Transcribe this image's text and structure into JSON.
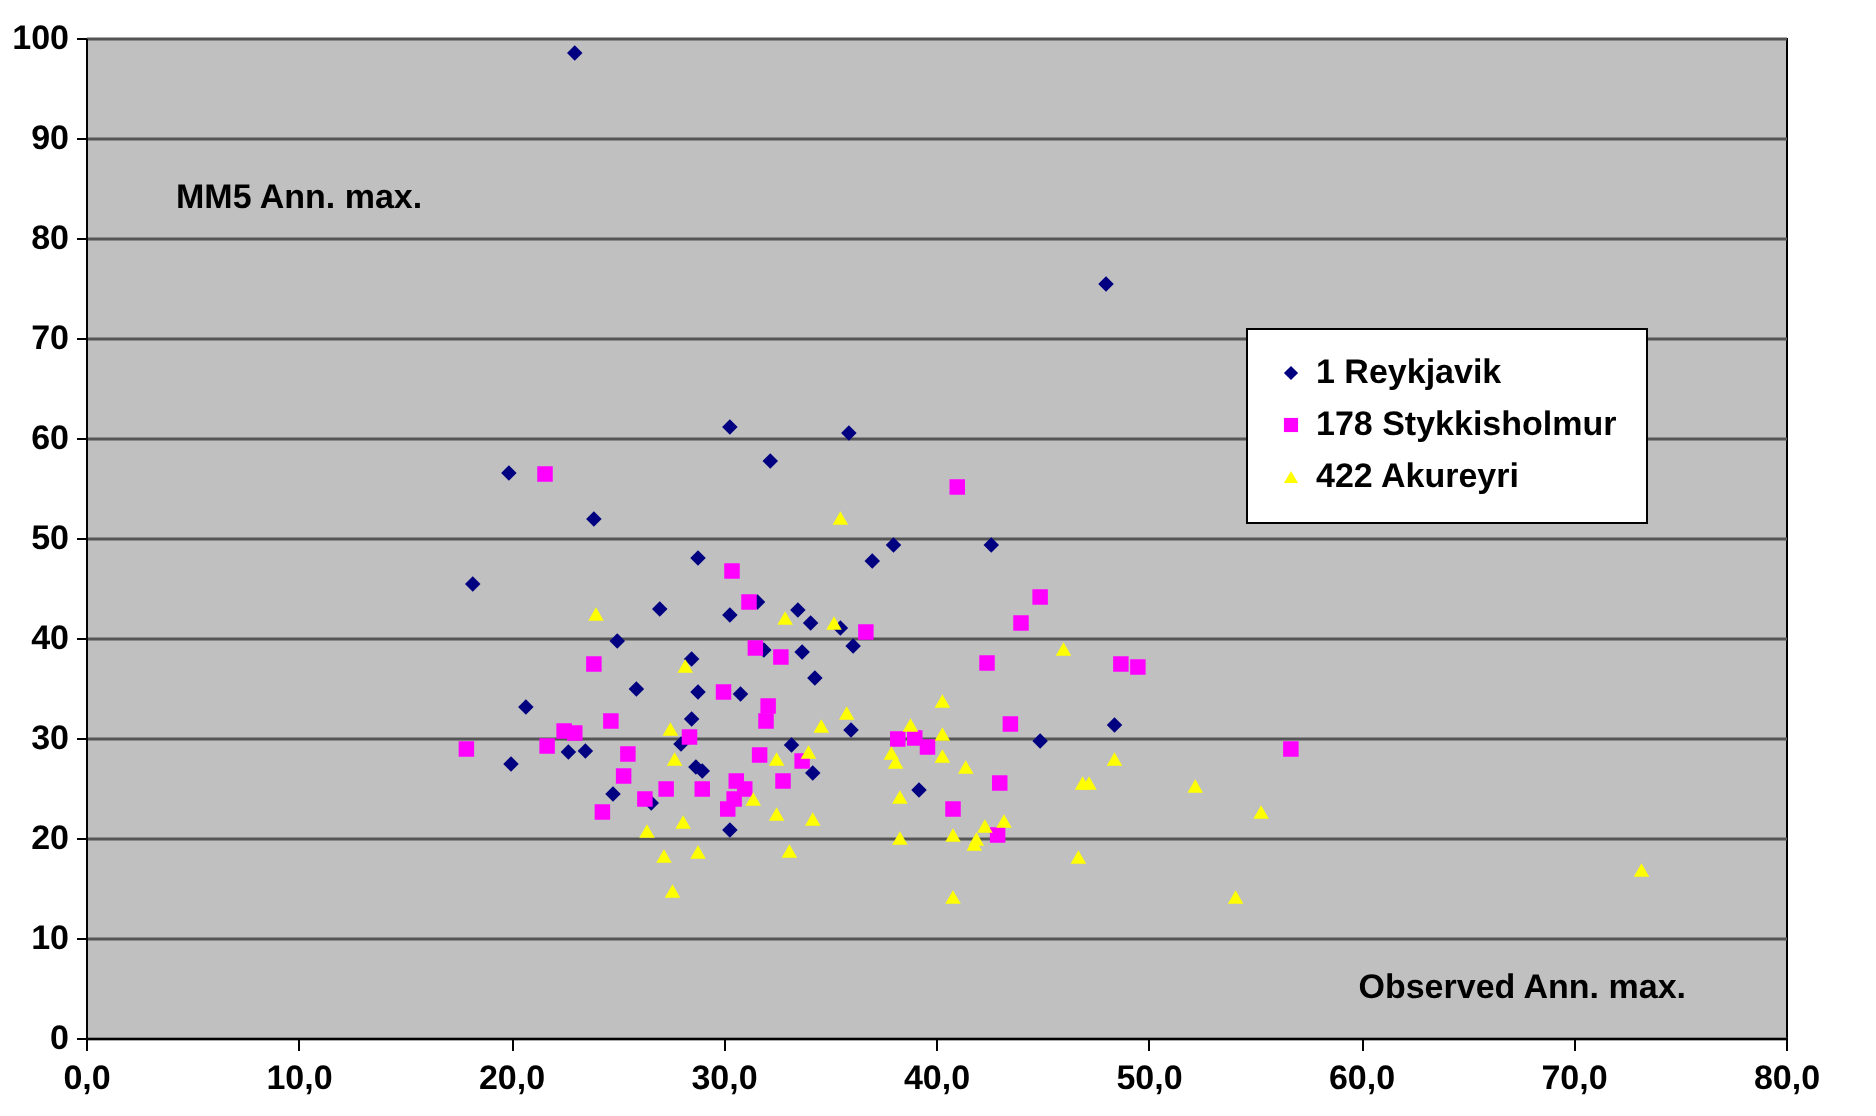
{
  "chart_data": {
    "type": "scatter",
    "xlabel": "Observed  Ann. max.",
    "ylabel": "MM5 Ann. max.",
    "xlim": [
      0,
      80
    ],
    "xticks": [
      {
        "value": 0,
        "label": "0,0"
      },
      {
        "value": 10,
        "label": "10,0"
      },
      {
        "value": 20,
        "label": "20,0"
      },
      {
        "value": 30,
        "label": "30,0"
      },
      {
        "value": 40,
        "label": "40,0"
      },
      {
        "value": 50,
        "label": "50,0"
      },
      {
        "value": 60,
        "label": "60,0"
      },
      {
        "value": 70,
        "label": "70,0"
      },
      {
        "value": 80,
        "label": "80,0"
      }
    ],
    "ylim": [
      0,
      100
    ],
    "yticks": [
      0,
      10,
      20,
      30,
      40,
      50,
      60,
      70,
      80,
      90,
      100
    ],
    "grid": "y",
    "legend": "top right",
    "series": [
      {
        "name": "1 Reykjavik",
        "color": "#000080",
        "marker": "diamond",
        "x": [
          23.0,
          48.0,
          19.9,
          23.9,
          28.8,
          18.2,
          27.0,
          25.0,
          28.5,
          25.9,
          28.8,
          20.7,
          28.5,
          28.0,
          20.0,
          22.7,
          23.5,
          28.7,
          29.0,
          24.8,
          26.6,
          30.3,
          35.9,
          32.2,
          38.0,
          37.0,
          31.6,
          30.3,
          33.5,
          34.1,
          35.5,
          36.1,
          31.9,
          33.7,
          34.3,
          30.8,
          36.0,
          33.2,
          34.2,
          39.2,
          30.3,
          42.6,
          48.4,
          44.9
        ],
        "values": [
          98.5,
          75.4,
          56.5,
          51.9,
          48.0,
          45.4,
          42.9,
          39.7,
          37.9,
          34.9,
          34.6,
          33.1,
          31.9,
          29.4,
          27.4,
          28.6,
          28.7,
          27.1,
          26.7,
          24.4,
          23.5,
          61.1,
          60.5,
          57.7,
          49.3,
          47.7,
          43.6,
          42.3,
          42.8,
          41.5,
          41.0,
          39.2,
          38.8,
          38.6,
          36.0,
          34.4,
          30.8,
          29.3,
          26.5,
          24.8,
          20.8,
          49.3,
          31.3,
          29.7
        ]
      },
      {
        "name": "178 Stykkisholmur",
        "color": "#ff00ff",
        "marker": "square",
        "x": [
          21.6,
          23.9,
          24.7,
          22.5,
          23.0,
          28.4,
          17.9,
          21.7,
          25.5,
          25.3,
          27.3,
          26.3,
          29.0,
          24.3,
          30.4,
          31.2,
          36.7,
          31.5,
          32.7,
          30.0,
          32.1,
          32.0,
          38.2,
          39.0,
          39.6,
          31.7,
          33.7,
          32.8,
          30.6,
          31.0,
          30.5,
          30.2,
          41.0,
          44.9,
          44.0,
          42.4,
          48.7,
          49.5,
          43.5,
          56.7,
          43.0,
          40.8,
          42.9
        ],
        "values": [
          56.4,
          37.4,
          31.7,
          30.7,
          30.5,
          30.1,
          28.9,
          29.2,
          28.4,
          26.2,
          24.9,
          23.9,
          24.9,
          22.6,
          46.7,
          43.6,
          40.6,
          39.0,
          38.1,
          34.6,
          33.2,
          31.7,
          29.9,
          30.0,
          29.1,
          28.3,
          27.7,
          25.7,
          25.7,
          24.9,
          23.9,
          22.9,
          55.1,
          44.1,
          41.5,
          37.5,
          37.4,
          37.1,
          31.4,
          28.9,
          25.5,
          22.9,
          20.3
        ]
      },
      {
        "name": "422 Akureyri",
        "color": "#ffff00",
        "marker": "triangle",
        "x": [
          24.0,
          28.2,
          27.5,
          27.7,
          26.4,
          28.1,
          27.2,
          28.8,
          27.6,
          35.5,
          32.9,
          35.2,
          35.8,
          40.3,
          34.6,
          38.8,
          40.3,
          34.0,
          37.9,
          38.1,
          40.3,
          32.5,
          31.4,
          38.3,
          32.5,
          34.2,
          33.1,
          38.3,
          46.0,
          41.4,
          48.4,
          46.9,
          47.2,
          52.2,
          55.3,
          42.3,
          43.2,
          40.8,
          41.8,
          41.9,
          46.7,
          40.8,
          54.1,
          73.2
        ],
        "values": [
          42.4,
          37.2,
          30.9,
          27.9,
          20.7,
          21.6,
          18.2,
          18.6,
          14.7,
          52.0,
          42.0,
          41.5,
          32.5,
          33.7,
          31.2,
          31.3,
          30.4,
          28.6,
          28.5,
          27.6,
          28.2,
          27.9,
          23.9,
          24.1,
          22.4,
          21.9,
          18.7,
          20.0,
          38.9,
          27.1,
          27.9,
          25.5,
          25.5,
          25.2,
          22.6,
          21.2,
          21.7,
          20.3,
          19.4,
          19.9,
          18.1,
          14.1,
          14.1,
          16.8
        ]
      }
    ]
  }
}
